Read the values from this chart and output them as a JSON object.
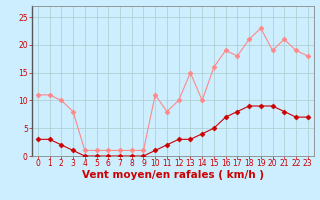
{
  "x": [
    0,
    1,
    2,
    3,
    4,
    5,
    6,
    7,
    8,
    9,
    10,
    11,
    12,
    13,
    14,
    15,
    16,
    17,
    18,
    19,
    20,
    21,
    22,
    23
  ],
  "wind_avg": [
    3,
    3,
    2,
    1,
    0,
    0,
    0,
    0,
    0,
    0,
    1,
    2,
    3,
    3,
    4,
    5,
    7,
    8,
    9,
    9,
    9,
    8,
    7,
    7
  ],
  "wind_gust": [
    11,
    11,
    10,
    8,
    1,
    1,
    1,
    1,
    1,
    1,
    11,
    8,
    10,
    15,
    10,
    16,
    19,
    18,
    21,
    23,
    19,
    21,
    19,
    18
  ],
  "bg_color": "#cceeff",
  "grid_color": "#aacccc",
  "line_avg_color": "#cc0000",
  "line_gust_color": "#ff8888",
  "marker_avg_color": "#cc0000",
  "marker_gust_color": "#ff8888",
  "xlabel": "Vent moyen/en rafales ( km/h )",
  "ylim": [
    0,
    27
  ],
  "xlim": [
    -0.5,
    23.5
  ],
  "yticks": [
    0,
    5,
    10,
    15,
    20,
    25
  ],
  "xticks": [
    0,
    1,
    2,
    3,
    4,
    5,
    6,
    7,
    8,
    9,
    10,
    11,
    12,
    13,
    14,
    15,
    16,
    17,
    18,
    19,
    20,
    21,
    22,
    23
  ],
  "tick_color": "#cc0000",
  "tick_fontsize": 5.5,
  "xlabel_fontsize": 7.5,
  "xlabel_color": "#cc0000",
  "spine_color": "#888888",
  "left_spine_color": "#555555"
}
